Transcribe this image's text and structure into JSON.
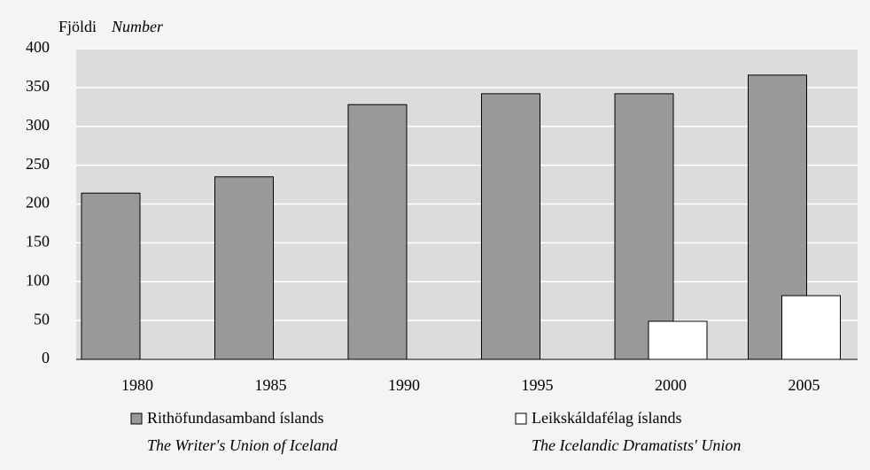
{
  "chart_data": {
    "type": "bar",
    "y_label": "Fjöldi",
    "y_label_en": "Number",
    "categories": [
      "1980",
      "1985",
      "1990",
      "1995",
      "2000",
      "2005"
    ],
    "series": [
      {
        "name": "Rithöfundasamband íslands",
        "name_en": "The Writer's Union of Iceland",
        "color": "#999999",
        "values": [
          214,
          235,
          328,
          342,
          342,
          366
        ]
      },
      {
        "name": "Leikskáldafélag íslands",
        "name_en": "The Icelandic Dramatists' Union",
        "color": "#ffffff",
        "values": [
          null,
          null,
          null,
          null,
          49,
          82
        ]
      }
    ],
    "ylim": [
      0,
      400
    ],
    "yticks": [
      0,
      50,
      100,
      150,
      200,
      250,
      300,
      350,
      400
    ],
    "grid": true
  }
}
